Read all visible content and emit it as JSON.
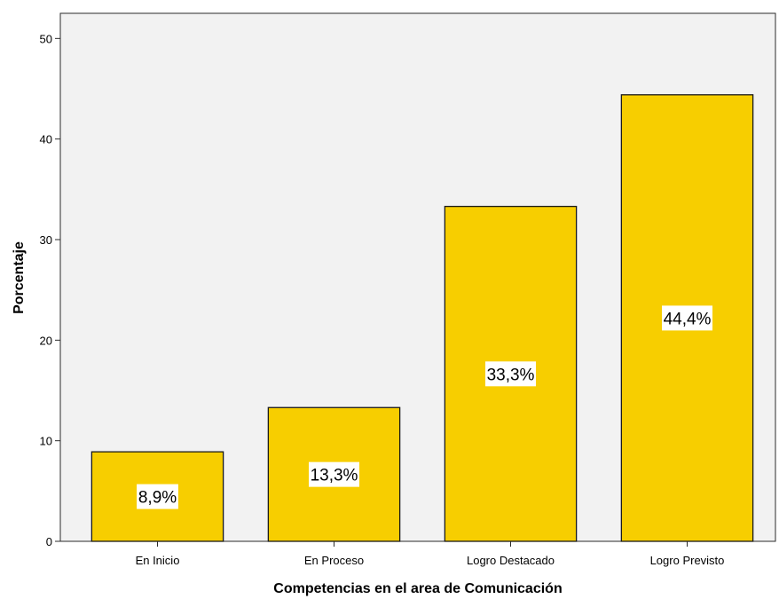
{
  "chart_data": {
    "type": "bar",
    "title": "",
    "xlabel": "Competencias en el area de Comunicación",
    "ylabel": "Porcentaje",
    "categories": [
      "En Inicio",
      "En Proceso",
      "Logro Destacado",
      "Logro Previsto"
    ],
    "values": [
      8.9,
      13.3,
      33.3,
      44.4
    ],
    "data_labels": [
      "8,9%",
      "13,3%",
      "33,3%",
      "44,4%"
    ],
    "ylim": [
      0,
      52.5
    ],
    "yticks": [
      0,
      10,
      20,
      30,
      40,
      50
    ],
    "ytick_labels": [
      "0",
      "10",
      "20",
      "30",
      "40",
      "50"
    ],
    "grid": false,
    "legend": "none",
    "colors": {
      "bar": "#F7CE00",
      "bar_edge": "#1A1A1A",
      "label_box": "#FFFFFF"
    }
  }
}
